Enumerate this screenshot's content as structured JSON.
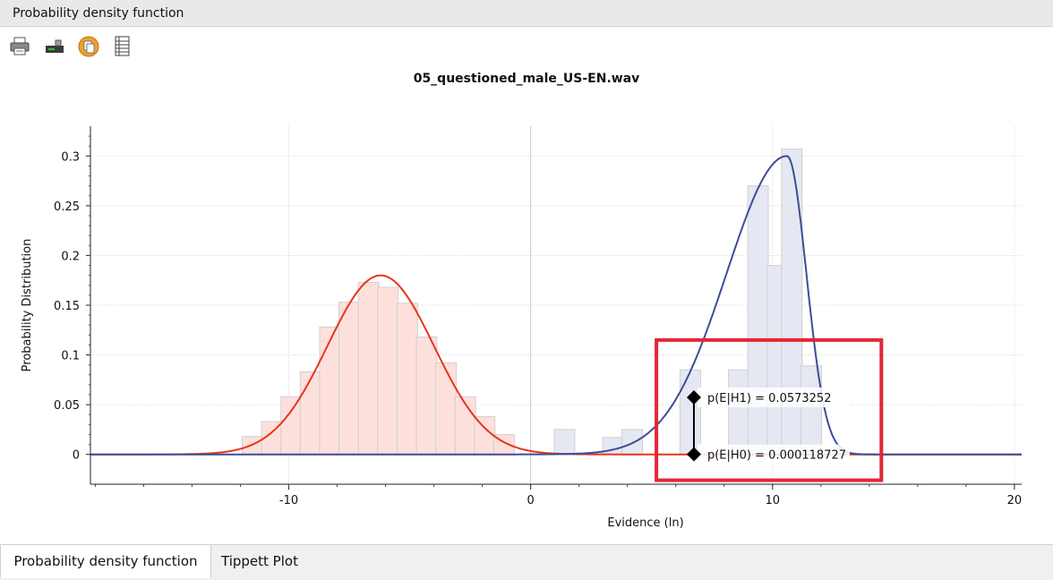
{
  "window": {
    "title": "Probability density function"
  },
  "toolbar": {
    "icons": [
      "printer-icon",
      "export-icon",
      "copy-icon",
      "data-table-icon"
    ]
  },
  "tabs": [
    {
      "label": "Probability density function",
      "active": true
    },
    {
      "label": "Tippett Plot",
      "active": false
    }
  ],
  "colors": {
    "h0_curve": "#e8341c",
    "h0_bars": "#fde0dc",
    "h1_curve": "#3c4d96",
    "h1_bars": "#e5e8f2",
    "highlight": "#e32636"
  },
  "chart_data": {
    "type": "bar",
    "title": "05_questioned_male_US-EN.wav",
    "xlabel": "Evidence (ln)",
    "ylabel": "Probability Distribution",
    "xlim": [
      -18.2,
      20.3
    ],
    "ylim": [
      -0.03,
      0.33
    ],
    "xticks": [
      -10,
      0,
      10,
      20
    ],
    "yticks": [
      0,
      0.05,
      0.1,
      0.15,
      0.2,
      0.25,
      0.3
    ],
    "grid": true,
    "bin_width": 0.85,
    "series": [
      {
        "kind": "histogram",
        "color_key": "h0_bars",
        "bins": [
          {
            "x": -11.5,
            "y": 0.018
          },
          {
            "x": -10.7,
            "y": 0.033
          },
          {
            "x": -9.9,
            "y": 0.058
          },
          {
            "x": -9.1,
            "y": 0.083
          },
          {
            "x": -8.3,
            "y": 0.128
          },
          {
            "x": -7.5,
            "y": 0.153
          },
          {
            "x": -6.7,
            "y": 0.173
          },
          {
            "x": -5.9,
            "y": 0.168
          },
          {
            "x": -5.1,
            "y": 0.152
          },
          {
            "x": -4.3,
            "y": 0.118
          },
          {
            "x": -3.5,
            "y": 0.092
          },
          {
            "x": -2.7,
            "y": 0.058
          },
          {
            "x": -1.9,
            "y": 0.038
          },
          {
            "x": -1.1,
            "y": 0.02
          }
        ]
      },
      {
        "kind": "histogram",
        "color_key": "h1_bars",
        "bins": [
          {
            "x": 1.4,
            "y": 0.025
          },
          {
            "x": 3.4,
            "y": 0.017
          },
          {
            "x": 4.2,
            "y": 0.025
          },
          {
            "x": 6.6,
            "y": 0.085
          },
          {
            "x": 8.6,
            "y": 0.085
          },
          {
            "x": 9.4,
            "y": 0.27
          },
          {
            "x": 10.2,
            "y": 0.19
          },
          {
            "x": 10.8,
            "y": 0.307
          },
          {
            "x": 11.6,
            "y": 0.089
          }
        ]
      },
      {
        "kind": "density",
        "color_key": "h0_curve",
        "shape": "gaussian",
        "mean": -6.2,
        "sd": 2.2,
        "peak": 0.18
      },
      {
        "kind": "density",
        "color_key": "h1_curve",
        "shape": "skewed",
        "mode": 10.6,
        "sd_left": 2.5,
        "sd_right": 0.8,
        "peak": 0.3
      }
    ],
    "evidence_x": 6.75,
    "annotations": [
      {
        "label": "p(E|H1) = 0.0573252",
        "value": 0.0573252
      },
      {
        "label": "p(E|H0) = 0.000118727",
        "value": 0.000118727
      }
    ],
    "highlight_box": {
      "x": [
        5.2,
        14.5
      ],
      "y": [
        -0.026,
        0.115
      ]
    }
  }
}
